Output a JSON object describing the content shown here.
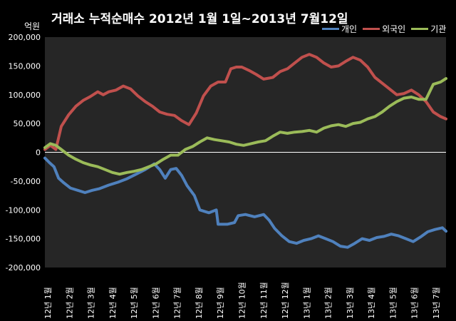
{
  "title": "거래소  누적순매수 2012년 1월 1일~2013년 7월12일",
  "unit_label": "억원",
  "colors": {
    "개인": "#4F81BD",
    "외국인": "#C0504D",
    "기관": "#9BBB59",
    "background": "#000000",
    "plot_area": "#262626"
  },
  "chart_data": {
    "type": "line",
    "title": "거래소  누적순매수 2012년 1월 1일~2013년 7월12일",
    "ylabel": "억원",
    "ylim": [
      -200000,
      200000
    ],
    "yticks": [
      "200,000",
      "150,000",
      "100,000",
      "50,000",
      "0",
      "-50,000",
      "-100,000",
      "-150,000",
      "-200,000"
    ],
    "x_categories": [
      "12년 1월",
      "12년 2월",
      "12년 3월",
      "12년 4월",
      "12년 5월",
      "12년 6월",
      "12년 7월",
      "12년 8월",
      "12년 9월",
      "12년 10월",
      "12년 11월",
      "12년 12월",
      "13년 1월",
      "13년 2월",
      "13년 3월",
      "13년 4월",
      "13년 5월",
      "13년 6월",
      "13년 7월"
    ],
    "legend_position": "top-right",
    "grid": false,
    "series": [
      {
        "name": "개인",
        "color": "#4F81BD",
        "points": [
          [
            0.0,
            -10000
          ],
          [
            0.25,
            -18000
          ],
          [
            0.5,
            -25000
          ],
          [
            0.75,
            -45000
          ],
          [
            1.0,
            -52000
          ],
          [
            1.4,
            -62000
          ],
          [
            1.8,
            -66000
          ],
          [
            2.2,
            -70000
          ],
          [
            2.6,
            -66000
          ],
          [
            3.0,
            -63000
          ],
          [
            3.5,
            -57000
          ],
          [
            4.0,
            -52000
          ],
          [
            4.5,
            -46000
          ],
          [
            5.0,
            -38000
          ],
          [
            5.5,
            -30000
          ],
          [
            6.0,
            -20000
          ],
          [
            6.3,
            -30000
          ],
          [
            6.6,
            -45000
          ],
          [
            6.9,
            -30000
          ],
          [
            7.2,
            -28000
          ],
          [
            7.5,
            -40000
          ],
          [
            7.8,
            -58000
          ],
          [
            8.2,
            -75000
          ],
          [
            8.5,
            -100000
          ],
          [
            9.0,
            -105000
          ],
          [
            9.4,
            -100000
          ],
          [
            9.5,
            -125000
          ],
          [
            10.0,
            -125000
          ],
          [
            10.4,
            -122000
          ],
          [
            10.6,
            -110000
          ],
          [
            11.0,
            -108000
          ],
          [
            11.5,
            -112000
          ],
          [
            12.0,
            -108000
          ],
          [
            12.3,
            -118000
          ],
          [
            12.6,
            -132000
          ],
          [
            13.0,
            -145000
          ],
          [
            13.4,
            -155000
          ],
          [
            13.8,
            -158000
          ],
          [
            14.2,
            -153000
          ],
          [
            14.6,
            -150000
          ],
          [
            15.0,
            -145000
          ],
          [
            15.4,
            -150000
          ],
          [
            15.8,
            -155000
          ],
          [
            16.2,
            -163000
          ],
          [
            16.6,
            -165000
          ],
          [
            17.0,
            -158000
          ],
          [
            17.4,
            -150000
          ],
          [
            17.8,
            -153000
          ],
          [
            18.2,
            -148000
          ],
          [
            18.6,
            -146000
          ],
          [
            19.0,
            -142000
          ],
          [
            19.4,
            -145000
          ],
          [
            19.8,
            -150000
          ],
          [
            20.2,
            -155000
          ],
          [
            20.6,
            -147000
          ],
          [
            21.0,
            -138000
          ],
          [
            21.4,
            -134000
          ],
          [
            21.8,
            -131000
          ],
          [
            22.0,
            -137000
          ]
        ]
      },
      {
        "name": "외국인",
        "color": "#C0504D",
        "points": [
          [
            0.0,
            5000
          ],
          [
            0.3,
            12000
          ],
          [
            0.6,
            5000
          ],
          [
            0.9,
            45000
          ],
          [
            1.3,
            65000
          ],
          [
            1.7,
            80000
          ],
          [
            2.1,
            90000
          ],
          [
            2.5,
            97000
          ],
          [
            2.9,
            105000
          ],
          [
            3.2,
            100000
          ],
          [
            3.5,
            105000
          ],
          [
            3.9,
            108000
          ],
          [
            4.3,
            115000
          ],
          [
            4.7,
            110000
          ],
          [
            5.1,
            98000
          ],
          [
            5.5,
            88000
          ],
          [
            5.9,
            80000
          ],
          [
            6.3,
            70000
          ],
          [
            6.7,
            66000
          ],
          [
            7.1,
            64000
          ],
          [
            7.5,
            55000
          ],
          [
            7.9,
            48000
          ],
          [
            8.3,
            68000
          ],
          [
            8.7,
            98000
          ],
          [
            9.1,
            115000
          ],
          [
            9.5,
            122000
          ],
          [
            9.9,
            122000
          ],
          [
            10.2,
            145000
          ],
          [
            10.5,
            148000
          ],
          [
            10.8,
            148000
          ],
          [
            11.2,
            142000
          ],
          [
            11.6,
            135000
          ],
          [
            12.0,
            127000
          ],
          [
            12.5,
            130000
          ],
          [
            12.9,
            140000
          ],
          [
            13.3,
            145000
          ],
          [
            13.7,
            155000
          ],
          [
            14.1,
            165000
          ],
          [
            14.5,
            170000
          ],
          [
            14.9,
            165000
          ],
          [
            15.3,
            155000
          ],
          [
            15.7,
            148000
          ],
          [
            16.1,
            150000
          ],
          [
            16.5,
            158000
          ],
          [
            16.9,
            165000
          ],
          [
            17.3,
            160000
          ],
          [
            17.7,
            148000
          ],
          [
            18.1,
            130000
          ],
          [
            18.5,
            120000
          ],
          [
            18.9,
            110000
          ],
          [
            19.3,
            100000
          ],
          [
            19.7,
            102000
          ],
          [
            20.1,
            108000
          ],
          [
            20.5,
            100000
          ],
          [
            20.9,
            88000
          ],
          [
            21.3,
            70000
          ],
          [
            21.7,
            62000
          ],
          [
            22.0,
            58000
          ]
        ]
      },
      {
        "name": "기관",
        "color": "#9BBB59",
        "points": [
          [
            0.0,
            8000
          ],
          [
            0.3,
            15000
          ],
          [
            0.6,
            12000
          ],
          [
            0.9,
            5000
          ],
          [
            1.3,
            -5000
          ],
          [
            1.7,
            -12000
          ],
          [
            2.1,
            -18000
          ],
          [
            2.5,
            -22000
          ],
          [
            2.9,
            -25000
          ],
          [
            3.3,
            -30000
          ],
          [
            3.7,
            -35000
          ],
          [
            4.1,
            -38000
          ],
          [
            4.5,
            -35000
          ],
          [
            4.9,
            -33000
          ],
          [
            5.3,
            -30000
          ],
          [
            5.7,
            -25000
          ],
          [
            6.1,
            -20000
          ],
          [
            6.5,
            -12000
          ],
          [
            6.9,
            -5000
          ],
          [
            7.3,
            -5000
          ],
          [
            7.7,
            5000
          ],
          [
            8.1,
            10000
          ],
          [
            8.5,
            18000
          ],
          [
            8.9,
            25000
          ],
          [
            9.3,
            22000
          ],
          [
            9.7,
            20000
          ],
          [
            10.1,
            18000
          ],
          [
            10.5,
            14000
          ],
          [
            10.9,
            12000
          ],
          [
            11.3,
            15000
          ],
          [
            11.7,
            18000
          ],
          [
            12.1,
            20000
          ],
          [
            12.5,
            28000
          ],
          [
            12.9,
            35000
          ],
          [
            13.3,
            33000
          ],
          [
            13.7,
            35000
          ],
          [
            14.1,
            36000
          ],
          [
            14.5,
            38000
          ],
          [
            14.9,
            35000
          ],
          [
            15.3,
            42000
          ],
          [
            15.7,
            46000
          ],
          [
            16.1,
            48000
          ],
          [
            16.5,
            45000
          ],
          [
            16.9,
            50000
          ],
          [
            17.3,
            52000
          ],
          [
            17.7,
            58000
          ],
          [
            18.1,
            62000
          ],
          [
            18.5,
            70000
          ],
          [
            18.9,
            80000
          ],
          [
            19.3,
            88000
          ],
          [
            19.7,
            94000
          ],
          [
            20.1,
            96000
          ],
          [
            20.5,
            92000
          ],
          [
            20.9,
            92000
          ],
          [
            21.3,
            118000
          ],
          [
            21.7,
            122000
          ],
          [
            22.0,
            128000
          ]
        ]
      }
    ]
  }
}
